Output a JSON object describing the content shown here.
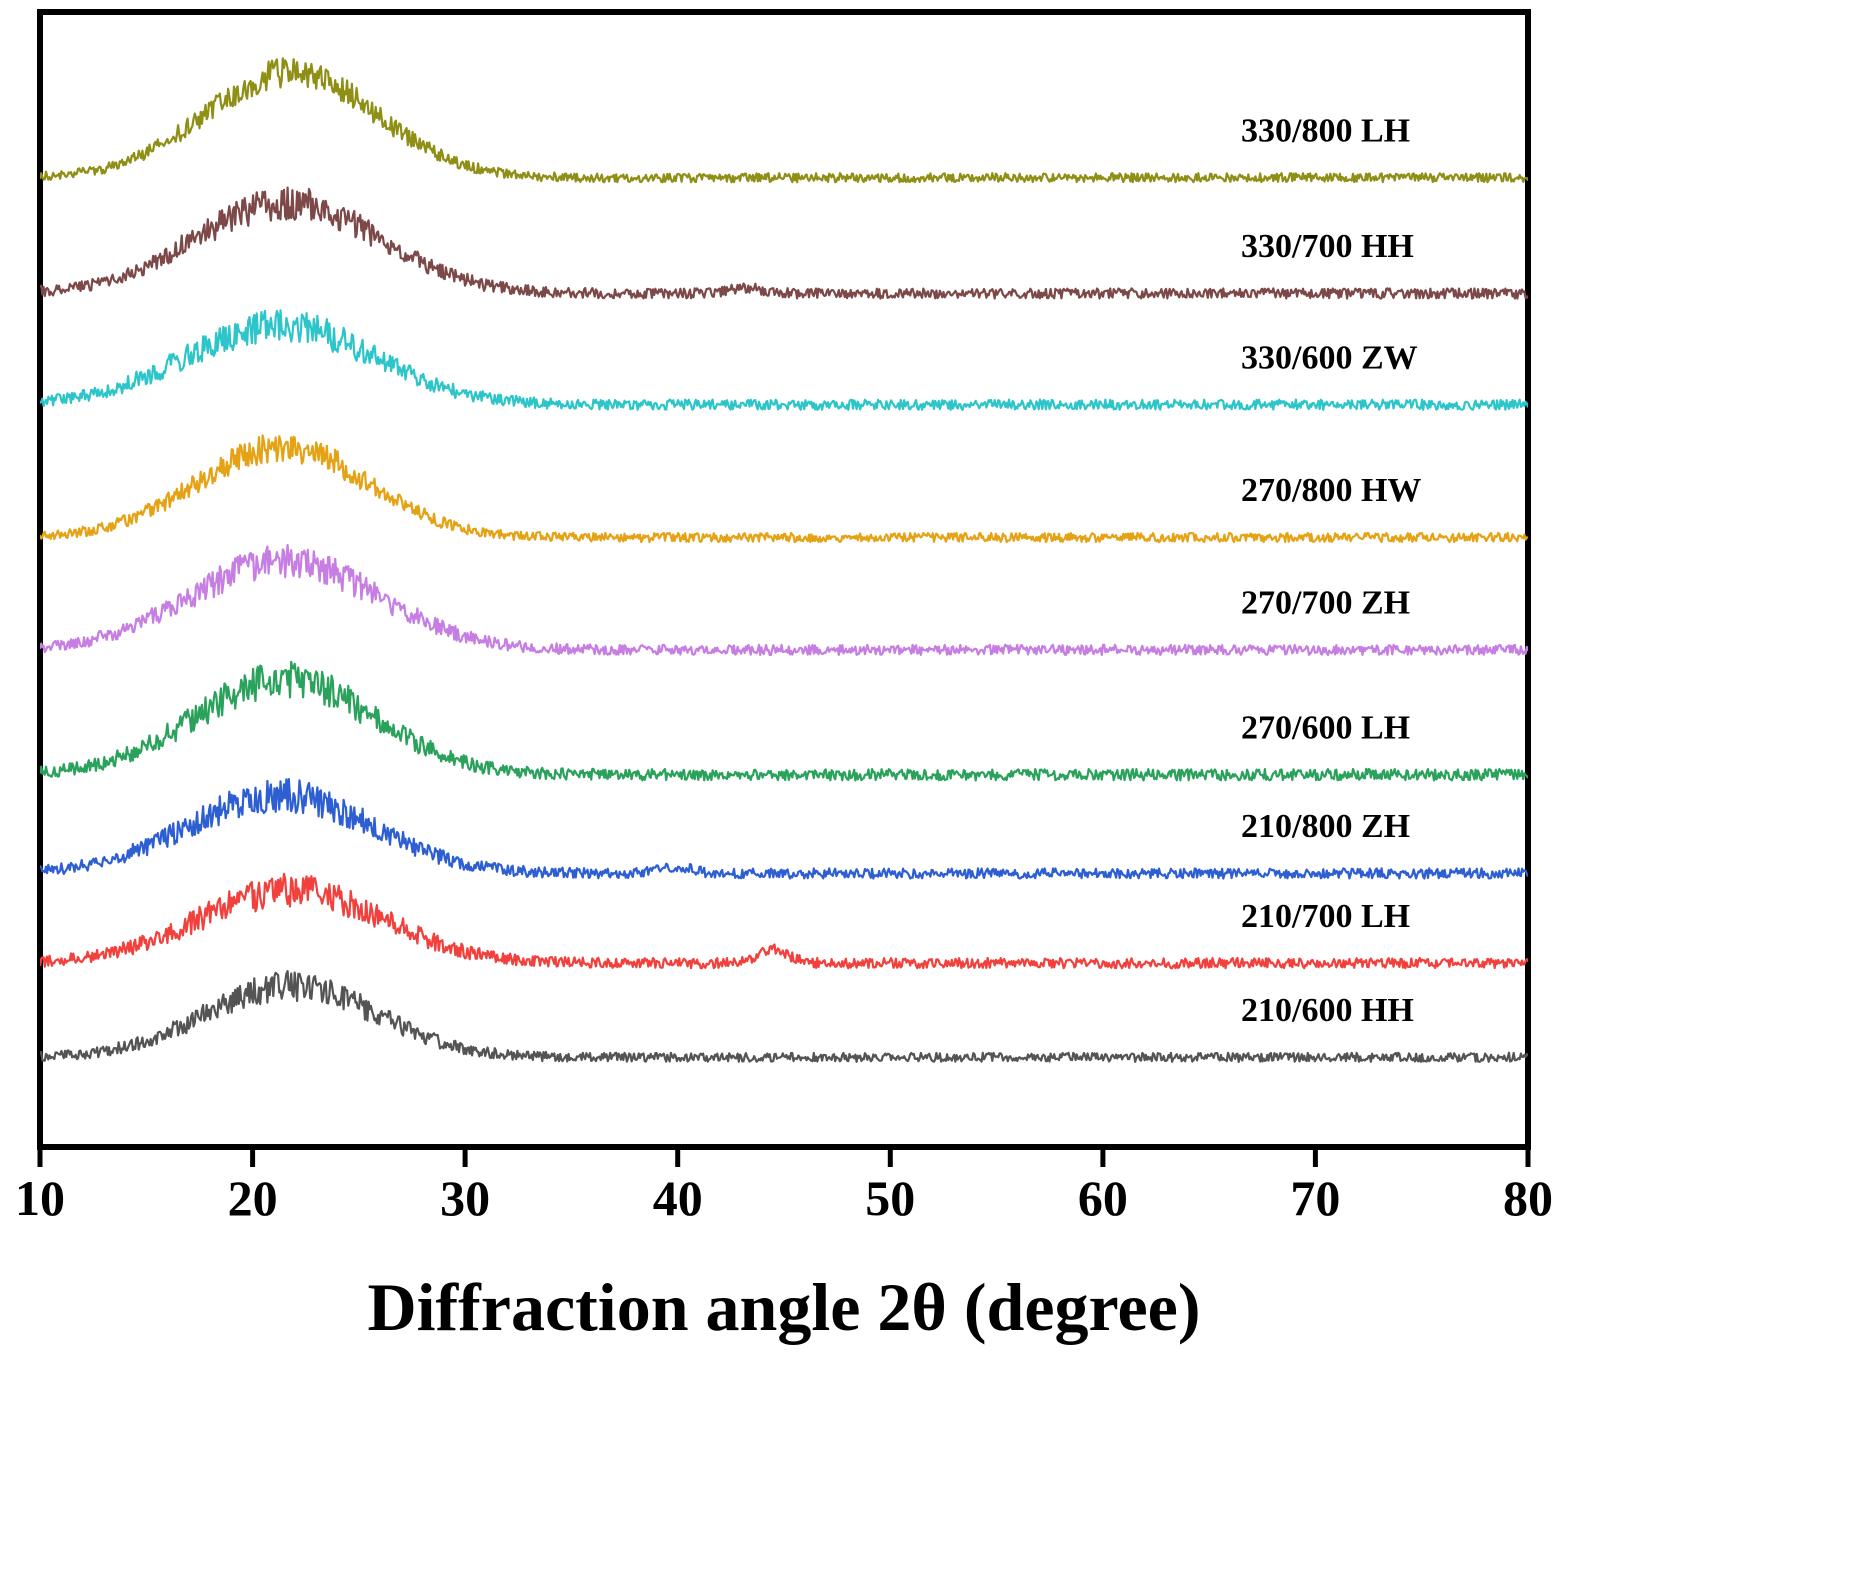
{
  "figure": {
    "background": "#ffffff",
    "plot_border_color": "#000000"
  },
  "chart_data": {
    "type": "line",
    "title": "",
    "xlabel": "Diffraction angle 2θ  (degree)",
    "ylabel": "",
    "xlim": [
      10,
      80
    ],
    "ylim": [
      0,
      1000
    ],
    "x_ticks": [
      "10",
      "20",
      "30",
      "40",
      "50",
      "60",
      "70",
      "80"
    ],
    "grid": false,
    "legend_position": "inline-labels-right",
    "description": "Stacked XRD patterns, each a broad amorphous hump centered near 2-theta = 22 degrees with a flat noisy tail, vertically offset, labeled at right.",
    "series": [
      {
        "id": "330-800-lh",
        "name": "330/800  LH",
        "color": "#8f8f15",
        "baseline": 854,
        "peak_center": 21.8,
        "peak_sigma": 4.0,
        "peak_height": 93,
        "noise": 4.0,
        "label_x": 66.5,
        "label_dy": 32,
        "bumps": []
      },
      {
        "id": "330-700-hh",
        "name": "330/700  HH",
        "color": "#7d4848",
        "baseline": 752,
        "peak_center": 21.6,
        "peak_sigma": 4.3,
        "peak_height": 80,
        "noise": 4.5,
        "label_x": 66.5,
        "label_dy": 32,
        "bumps": [
          {
            "center": 43.2,
            "height": 5,
            "sigma": 0.8
          }
        ]
      },
      {
        "id": "330-600-zw",
        "name": "330/600  ZW",
        "color": "#2cc5c9",
        "baseline": 654,
        "peak_center": 21.3,
        "peak_sigma": 4.4,
        "peak_height": 70,
        "noise": 4.5,
        "label_x": 66.5,
        "label_dy": 32,
        "bumps": []
      },
      {
        "id": "270-800-hw",
        "name": "270/800  HW",
        "color": "#e5a214",
        "baseline": 537,
        "peak_center": 21.4,
        "peak_sigma": 4.0,
        "peak_height": 80,
        "noise": 4.0,
        "label_x": 66.5,
        "label_dy": 32,
        "bumps": []
      },
      {
        "id": "270-700-zh",
        "name": "270/700  ZH",
        "color": "#c77ee2",
        "baseline": 438,
        "peak_center": 21.5,
        "peak_sigma": 4.4,
        "peak_height": 78,
        "noise": 4.5,
        "label_x": 66.5,
        "label_dy": 32,
        "bumps": []
      },
      {
        "id": "270-600-lh",
        "name": "270/600  LH",
        "color": "#2aa25c",
        "baseline": 328,
        "peak_center": 21.5,
        "peak_sigma": 4.2,
        "peak_height": 84,
        "noise": 5.0,
        "label_x": 66.5,
        "label_dy": 32,
        "bumps": []
      },
      {
        "id": "210-800-zh",
        "name": "210/800  ZH",
        "color": "#2d5fd3",
        "baseline": 241,
        "peak_center": 21.3,
        "peak_sigma": 4.3,
        "peak_height": 69,
        "noise": 4.5,
        "label_x": 66.5,
        "label_dy": 32,
        "bumps": [
          {
            "center": 39.8,
            "height": 6,
            "sigma": 0.8
          }
        ]
      },
      {
        "id": "210-700-lh",
        "name": "210/700  LH",
        "color": "#f2403c",
        "baseline": 162,
        "peak_center": 21.8,
        "peak_sigma": 4.3,
        "peak_height": 64,
        "noise": 4.5,
        "label_x": 66.5,
        "label_dy": 32,
        "bumps": [
          {
            "center": 44.5,
            "height": 12,
            "sigma": 0.7
          }
        ]
      },
      {
        "id": "210-600-hh",
        "name": "210/600  HH",
        "color": "#545454",
        "baseline": 79,
        "peak_center": 21.8,
        "peak_sigma": 4.0,
        "peak_height": 63,
        "noise": 4.0,
        "label_x": 66.5,
        "label_dy": 32,
        "bumps": []
      }
    ]
  }
}
